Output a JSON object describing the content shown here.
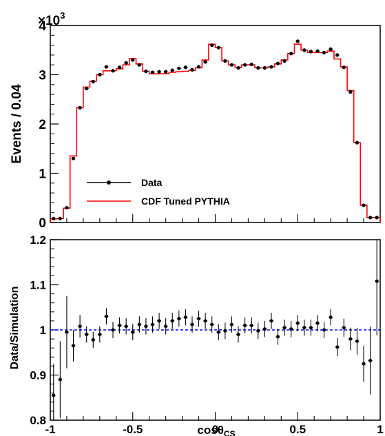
{
  "chart_data": [
    {
      "type": "line",
      "xlim": [
        -1,
        1
      ],
      "ylim": [
        0,
        4
      ],
      "ylabel": "Events / 0.04",
      "y_multiplier_label": "×10",
      "y_multiplier_exp": "3",
      "yticks": [
        "0",
        "1",
        "2",
        "3",
        "4"
      ],
      "legend": {
        "placement": "bottom-left",
        "data": "Data",
        "sim": "CDF Tuned PYTHIA"
      },
      "colors": {
        "data": "#000000",
        "sim": "#ff0000"
      },
      "x": [
        -0.98,
        -0.94,
        -0.9,
        -0.86,
        -0.82,
        -0.78,
        -0.74,
        -0.7,
        -0.66,
        -0.62,
        -0.58,
        -0.54,
        -0.5,
        -0.46,
        -0.42,
        -0.38,
        -0.34,
        -0.3,
        -0.26,
        -0.22,
        -0.18,
        -0.14,
        -0.1,
        -0.06,
        -0.02,
        0.02,
        0.06,
        0.1,
        0.14,
        0.18,
        0.22,
        0.26,
        0.3,
        0.34,
        0.38,
        0.42,
        0.46,
        0.5,
        0.54,
        0.58,
        0.62,
        0.66,
        0.7,
        0.74,
        0.78,
        0.82,
        0.86,
        0.9,
        0.94,
        0.98
      ],
      "data_values": [
        0.08,
        0.08,
        0.3,
        1.3,
        2.33,
        2.72,
        2.86,
        3.0,
        3.16,
        3.08,
        3.15,
        3.24,
        3.3,
        3.2,
        3.07,
        3.05,
        3.06,
        3.06,
        3.09,
        3.13,
        3.15,
        3.1,
        3.16,
        3.26,
        3.6,
        3.55,
        3.28,
        3.2,
        3.14,
        3.2,
        3.21,
        3.14,
        3.14,
        3.16,
        3.23,
        3.28,
        3.43,
        3.68,
        3.5,
        3.47,
        3.48,
        3.45,
        3.52,
        3.4,
        3.15,
        2.65,
        1.62,
        0.35,
        0.1,
        0.1
      ],
      "sim_values": [
        0.07,
        0.08,
        0.29,
        1.35,
        2.33,
        2.75,
        2.87,
        3.0,
        3.08,
        3.08,
        3.12,
        3.2,
        3.33,
        3.22,
        3.07,
        3.02,
        3.02,
        3.02,
        3.05,
        3.06,
        3.07,
        3.09,
        3.14,
        3.3,
        3.62,
        3.55,
        3.28,
        3.2,
        3.15,
        3.2,
        3.2,
        3.14,
        3.14,
        3.16,
        3.22,
        3.3,
        3.43,
        3.62,
        3.5,
        3.45,
        3.45,
        3.45,
        3.48,
        3.32,
        3.16,
        2.68,
        1.62,
        0.35,
        0.1,
        0.1
      ]
    },
    {
      "type": "scatter",
      "xlim": [
        -1,
        1
      ],
      "ylim": [
        0.8,
        1.2
      ],
      "xlabel": "cosθ",
      "xlabel_sub": "CS",
      "ylabel": "Data/Simulation",
      "xticks": [
        "-1",
        "-0.5",
        "0",
        "0.5",
        "1"
      ],
      "yticks": [
        "0.8",
        "0.9",
        "1",
        "1.1",
        "1.2"
      ],
      "reference_line": 1.0,
      "colors": {
        "points": "#000000",
        "reference": "#0000ff"
      },
      "x": [
        -0.98,
        -0.94,
        -0.9,
        -0.86,
        -0.82,
        -0.78,
        -0.74,
        -0.7,
        -0.66,
        -0.62,
        -0.58,
        -0.54,
        -0.5,
        -0.46,
        -0.42,
        -0.38,
        -0.34,
        -0.3,
        -0.26,
        -0.22,
        -0.18,
        -0.14,
        -0.1,
        -0.06,
        -0.02,
        0.02,
        0.06,
        0.1,
        0.14,
        0.18,
        0.22,
        0.26,
        0.3,
        0.34,
        0.38,
        0.42,
        0.46,
        0.5,
        0.54,
        0.58,
        0.62,
        0.66,
        0.7,
        0.74,
        0.78,
        0.82,
        0.86,
        0.9,
        0.94,
        0.98
      ],
      "values": [
        0.855,
        0.89,
        0.995,
        0.965,
        1.008,
        0.99,
        0.978,
        0.99,
        1.03,
        1.0,
        1.01,
        1.008,
        0.995,
        1.012,
        1.008,
        1.012,
        1.02,
        1.008,
        1.02,
        1.025,
        1.028,
        1.012,
        1.025,
        1.02,
        1.012,
        0.995,
        0.998,
        1.012,
        0.99,
        1.01,
        1.01,
        0.998,
        1.002,
        1.02,
        0.985,
        1.005,
        1.002,
        1.015,
        1.005,
        1.005,
        1.015,
        1.0,
        1.028,
        0.962,
        1.005,
        0.98,
        0.975,
        0.925,
        0.932,
        1.108
      ],
      "errors": [
        0.07,
        0.085,
        0.08,
        0.035,
        0.025,
        0.018,
        0.018,
        0.018,
        0.018,
        0.018,
        0.018,
        0.018,
        0.018,
        0.018,
        0.018,
        0.018,
        0.018,
        0.018,
        0.018,
        0.018,
        0.018,
        0.018,
        0.018,
        0.018,
        0.018,
        0.018,
        0.018,
        0.018,
        0.018,
        0.018,
        0.018,
        0.018,
        0.018,
        0.018,
        0.018,
        0.018,
        0.018,
        0.018,
        0.018,
        0.018,
        0.018,
        0.018,
        0.018,
        0.02,
        0.02,
        0.025,
        0.03,
        0.04,
        0.075,
        0.12
      ]
    }
  ]
}
